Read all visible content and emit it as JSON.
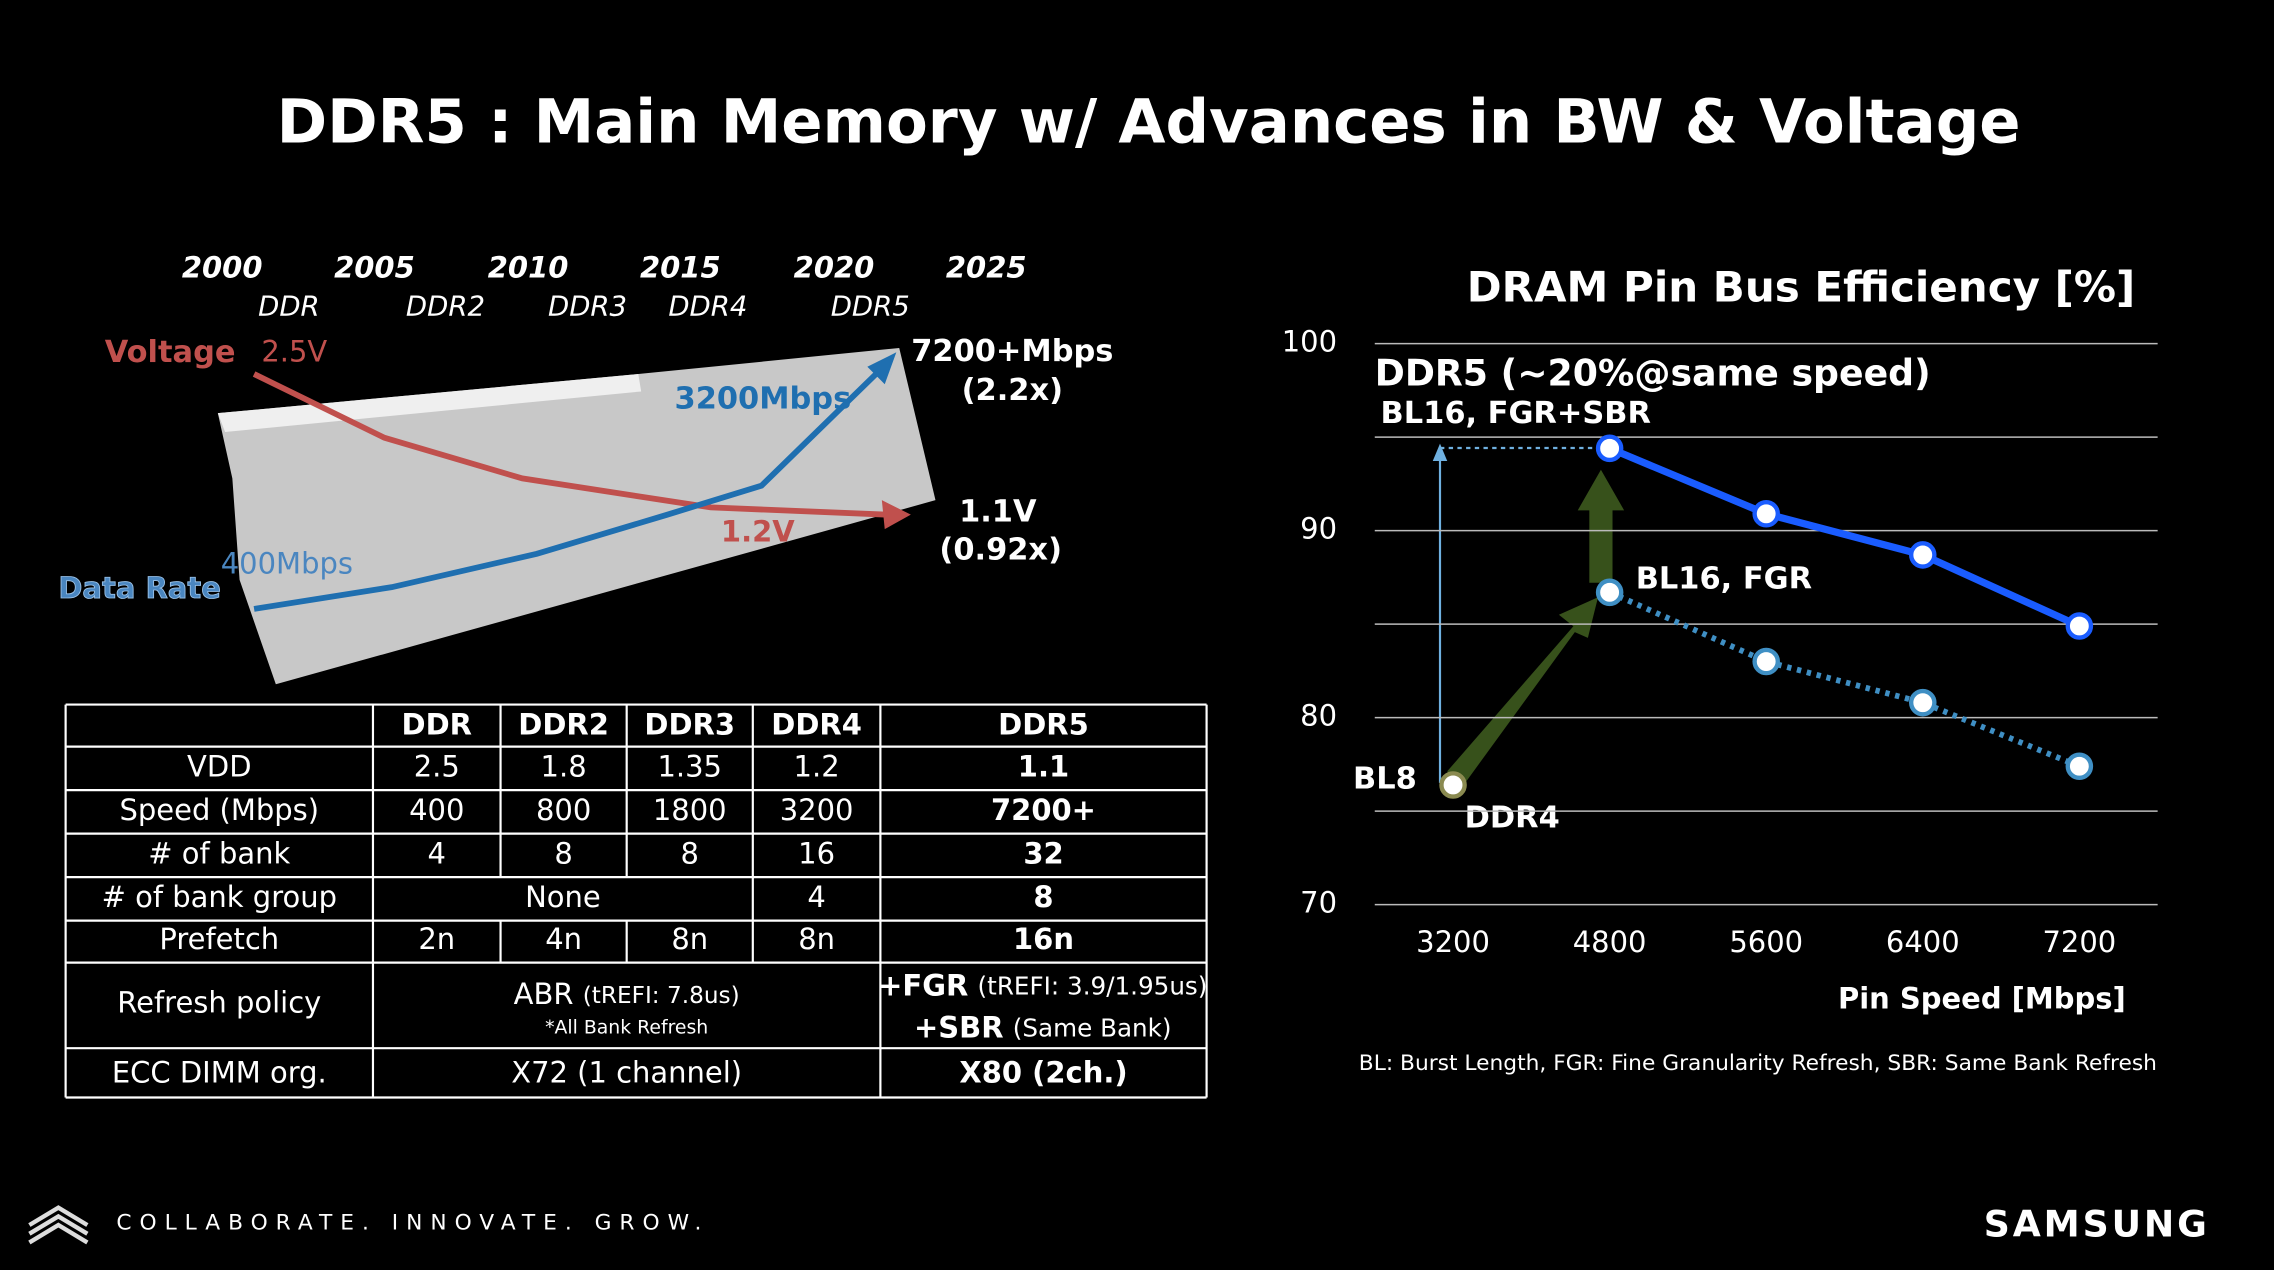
{
  "title": "DDR5 : Main Memory w/ Advances in BW & Voltage",
  "timeline": {
    "years": [
      "2000",
      "2005",
      "2010",
      "2015",
      "2020",
      "2025"
    ],
    "generations": [
      "DDR",
      "DDR2",
      "DDR3",
      "DDR4",
      "DDR5"
    ],
    "voltage_label": "Voltage",
    "voltage_start": "2.5V",
    "voltage_ddr4": "1.2V",
    "voltage_ddr5": "1.1V",
    "voltage_ratio": "(0.92x)",
    "rate_label": "Data Rate",
    "rate_start": "400Mbps",
    "rate_ddr4": "3200Mbps",
    "rate_ddr5": "7200+Mbps",
    "rate_ratio": "(2.2x)"
  },
  "table": {
    "header": [
      "DDR",
      "DDR2",
      "DDR3",
      "DDR4",
      "DDR5"
    ],
    "rows": [
      {
        "label": "VDD",
        "cells": [
          "2.5",
          "1.8",
          "1.35",
          "1.2",
          "1.1"
        ]
      },
      {
        "label": "Speed (Mbps)",
        "cells": [
          "400",
          "800",
          "1800",
          "3200",
          "7200+"
        ]
      },
      {
        "label": "# of bank",
        "cells": [
          "4",
          "8",
          "8",
          "16",
          "32"
        ]
      },
      {
        "label": "# of bank group",
        "cells": [
          "None",
          "4",
          "8"
        ]
      },
      {
        "label": "Prefetch",
        "cells": [
          "2n",
          "4n",
          "8n",
          "8n",
          "16n"
        ]
      }
    ],
    "refresh": {
      "label": "Refresh policy",
      "abr": "ABR",
      "abr_detail": "(tREFI: 7.8us)",
      "abr_note": "*All Bank Refresh",
      "fgr": "+FGR",
      "fgr_detail": "(tREFI: 3.9/1.95us)",
      "sbr": "+SBR",
      "sbr_detail": "(Same Bank)"
    },
    "ecc": {
      "label": "ECC DIMM org.",
      "cells": [
        "X72 (1 channel)",
        "X80 (2ch.)"
      ]
    }
  },
  "chart_data": {
    "type": "line",
    "title": "DRAM Pin Bus Efficiency [%]",
    "x_label": "Pin Speed [Mbps]",
    "categories": [
      "3200",
      "4800",
      "5600",
      "6400",
      "7200"
    ],
    "series": [
      {
        "name": "BL16, FGR+SBR",
        "color": "#1a5cff",
        "values": [
          null,
          94.4,
          90.9,
          88.7,
          84.9
        ]
      },
      {
        "name": "BL16, FGR",
        "color": "#3f8fc4",
        "values": [
          null,
          86.7,
          83.0,
          80.8,
          77.4
        ]
      },
      {
        "name": "BL8",
        "color": "#e8e0a0",
        "values": [
          76.4,
          null,
          null,
          null,
          null
        ]
      }
    ],
    "annotations": [
      "DDR5 (~20%@same speed)",
      "DDR4"
    ],
    "ylim": [
      70,
      100
    ],
    "yticks": [
      70,
      80,
      90,
      100
    ],
    "minor_yticks": [
      75,
      85,
      95
    ],
    "grid": true,
    "footnote": "BL: Burst Length, FGR: Fine Granularity Refresh, SBR: Same Bank Refresh"
  },
  "footer": {
    "tagline": "COLLABORATE. INNOVATE. GROW.",
    "brand": "SAMSUNG"
  }
}
